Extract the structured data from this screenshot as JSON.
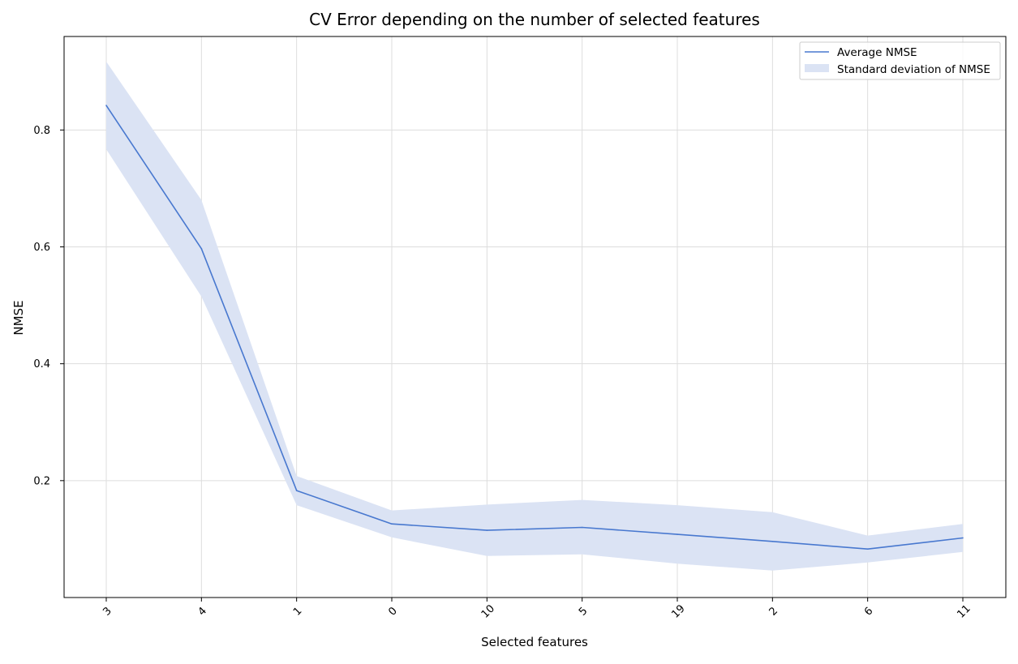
{
  "chart_data": {
    "type": "line",
    "title": "CV Error depending on the number of selected features",
    "xlabel": "Selected features",
    "ylabel": "NMSE",
    "categories": [
      "3",
      "4",
      "1",
      "0",
      "10",
      "5",
      "19",
      "2",
      "6",
      "11"
    ],
    "series": [
      {
        "name": "Average NMSE",
        "values": [
          0.842,
          0.597,
          0.183,
          0.126,
          0.115,
          0.12,
          0.108,
          0.096,
          0.083,
          0.102
        ]
      }
    ],
    "band": {
      "name": "Standard deviation of NMSE",
      "upper": [
        0.917,
        0.68,
        0.208,
        0.149,
        0.159,
        0.167,
        0.158,
        0.146,
        0.106,
        0.126
      ],
      "lower": [
        0.767,
        0.515,
        0.158,
        0.103,
        0.071,
        0.074,
        0.058,
        0.046,
        0.06,
        0.078
      ]
    },
    "ylim": [
      0.0,
      0.96
    ],
    "yticks": [
      0.2,
      0.4,
      0.6,
      0.8
    ],
    "ytick_labels": [
      "0.2",
      "0.4",
      "0.6",
      "0.8"
    ],
    "grid": true,
    "legend_position": "top-right",
    "colors": {
      "line": "#4878cf",
      "band": "#dbe3f4",
      "grid": "#dddddd",
      "axis": "#000000"
    }
  }
}
